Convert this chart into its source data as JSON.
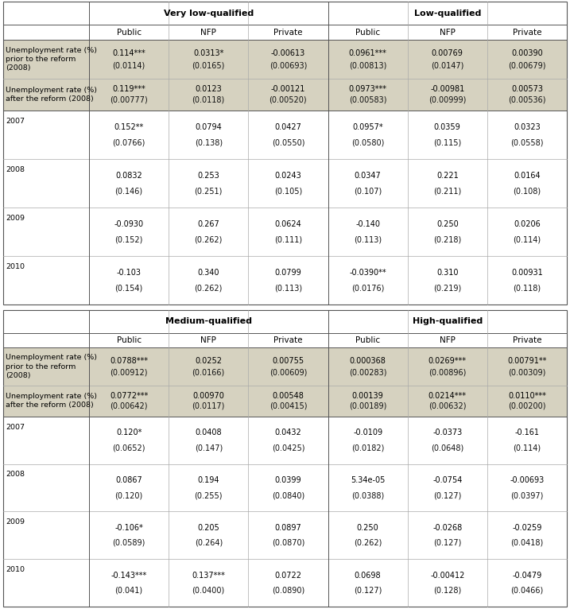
{
  "bg_color": "#ffffff",
  "shaded_color": "#d6d2c0",
  "line_color_dark": "#555555",
  "line_color_light": "#aaaaaa",
  "upper_header_left": "Very low-qualified",
  "upper_header_right": "Low-qualified",
  "lower_header_left": "Medium-qualified",
  "lower_header_right": "High-qualified",
  "sub_headers": [
    "Public",
    "NFP",
    "Private",
    "Public",
    "NFP",
    "Private"
  ],
  "row_label_shaded_0": "Unemployment rate (%)\nprior to the reform\n(2008)",
  "row_label_shaded_1": "Unemployment rate (%)\nafter the reform (2008)",
  "year_labels": [
    "2007",
    "2008",
    "2009",
    "2010"
  ],
  "upper_vals": [
    [
      "0.114***",
      "0.0313*",
      "-0.00613",
      "0.0961***",
      "0.00769",
      "0.00390"
    ],
    [
      "(0.0114)",
      "(0.0165)",
      "(0.00693)",
      "(0.00813)",
      "(0.0147)",
      "(0.00679)"
    ],
    [
      "0.119***",
      "0.0123",
      "-0.00121",
      "0.0973***",
      "-0.00981",
      "0.00573"
    ],
    [
      "(0.00777)",
      "(0.0118)",
      "(0.00520)",
      "(0.00583)",
      "(0.00999)",
      "(0.00536)"
    ],
    [
      "0.152**",
      "0.0794",
      "0.0427",
      "0.0957*",
      "0.0359",
      "0.0323"
    ],
    [
      "(0.0766)",
      "(0.138)",
      "(0.0550)",
      "(0.0580)",
      "(0.115)",
      "(0.0558)"
    ],
    [
      "0.0832",
      "0.253",
      "0.0243",
      "0.0347",
      "0.221",
      "0.0164"
    ],
    [
      "(0.146)",
      "(0.251)",
      "(0.105)",
      "(0.107)",
      "(0.211)",
      "(0.108)"
    ],
    [
      "-0.0930",
      "0.267",
      "0.0624",
      "-0.140",
      "0.250",
      "0.0206"
    ],
    [
      "(0.152)",
      "(0.262)",
      "(0.111)",
      "(0.113)",
      "(0.218)",
      "(0.114)"
    ],
    [
      "-0.103",
      "0.340",
      "0.0799",
      "-0.0390**",
      "0.310",
      "0.00931"
    ],
    [
      "(0.154)",
      "(0.262)",
      "(0.113)",
      "(0.0176)",
      "(0.219)",
      "(0.118)"
    ]
  ],
  "lower_vals": [
    [
      "0.0788***",
      "0.0252",
      "0.00755",
      "0.000368",
      "0.0269***",
      "0.00791**"
    ],
    [
      "(0.00912)",
      "(0.0166)",
      "(0.00609)",
      "(0.00283)",
      "(0.00896)",
      "(0.00309)"
    ],
    [
      "0.0772***",
      "0.00970",
      "0.00548",
      "0.00139",
      "0.0214***",
      "0.0110***"
    ],
    [
      "(0.00642)",
      "(0.0117)",
      "(0.00415)",
      "(0.00189)",
      "(0.00632)",
      "(0.00200)"
    ],
    [
      "0.120*",
      "0.0408",
      "0.0432",
      "-0.0109",
      "-0.0373",
      "-0.161"
    ],
    [
      "(0.0652)",
      "(0.147)",
      "(0.0425)",
      "(0.0182)",
      "(0.0648)",
      "(0.114)"
    ],
    [
      "0.0867",
      "0.194",
      "0.0399",
      "5.34e-05",
      "-0.0754",
      "-0.00693"
    ],
    [
      "(0.120)",
      "(0.255)",
      "(0.0840)",
      "(0.0388)",
      "(0.127)",
      "(0.0397)"
    ],
    [
      "-0.106*",
      "0.205",
      "0.0897",
      "0.250",
      "-0.0268",
      "-0.0259"
    ],
    [
      "(0.0589)",
      "(0.264)",
      "(0.0870)",
      "(0.262)",
      "(0.127)",
      "(0.0418)"
    ],
    [
      "-0.143***",
      "0.137***",
      "0.0722",
      "0.0698",
      "-0.00412",
      "-0.0479"
    ],
    [
      "(0.041)",
      "(0.0400)",
      "(0.0890)",
      "(0.127)",
      "(0.128)",
      "(0.0466)"
    ]
  ]
}
